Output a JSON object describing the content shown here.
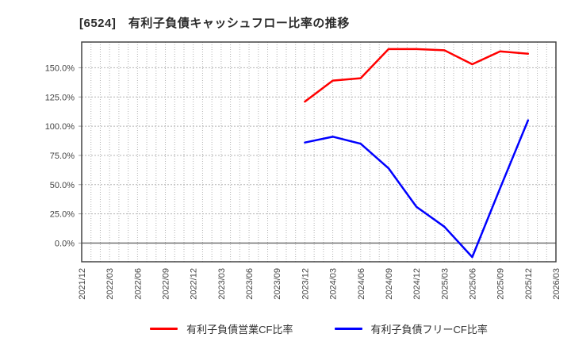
{
  "chart_data": {
    "type": "line",
    "title": "[6524]　有利子負債キャッシュフロー比率の推移",
    "categories": [
      "2021/12",
      "2022/03",
      "2022/06",
      "2022/09",
      "2022/12",
      "2023/03",
      "2023/06",
      "2023/09",
      "2023/12",
      "2024/03",
      "2024/06",
      "2024/09",
      "2024/12",
      "2025/03",
      "2025/06",
      "2025/09",
      "2025/12",
      "2026/03"
    ],
    "series": [
      {
        "name": "有利子負債営業CF比率",
        "color": "#ff0000",
        "start_index": 8,
        "values": [
          121,
          139,
          141,
          166,
          166,
          165,
          153,
          164,
          162
        ]
      },
      {
        "name": "有利子負債フリーCF比率",
        "color": "#0000ff",
        "start_index": 8,
        "values": [
          86,
          91,
          85,
          64,
          31,
          14,
          -12,
          47,
          105
        ]
      }
    ],
    "ylim": [
      -16,
      172
    ],
    "yticks": [
      {
        "value": 0,
        "label": "0.0%"
      },
      {
        "value": 25,
        "label": "25.0%"
      },
      {
        "value": 50,
        "label": "50.0%"
      },
      {
        "value": 75,
        "label": "75.0%"
      },
      {
        "value": 100,
        "label": "100.0%"
      },
      {
        "value": 125,
        "label": "125.0%"
      },
      {
        "value": 150,
        "label": "150.0%"
      }
    ],
    "xtick_rotation": 90,
    "grid": true,
    "legend_position": "bottom",
    "colors": {
      "grid": "#b3b3b3",
      "border": "#444444",
      "zero_line": "#666666",
      "tick_label": "#444444",
      "title": "#2b2b2b",
      "background": "#ffffff"
    }
  }
}
